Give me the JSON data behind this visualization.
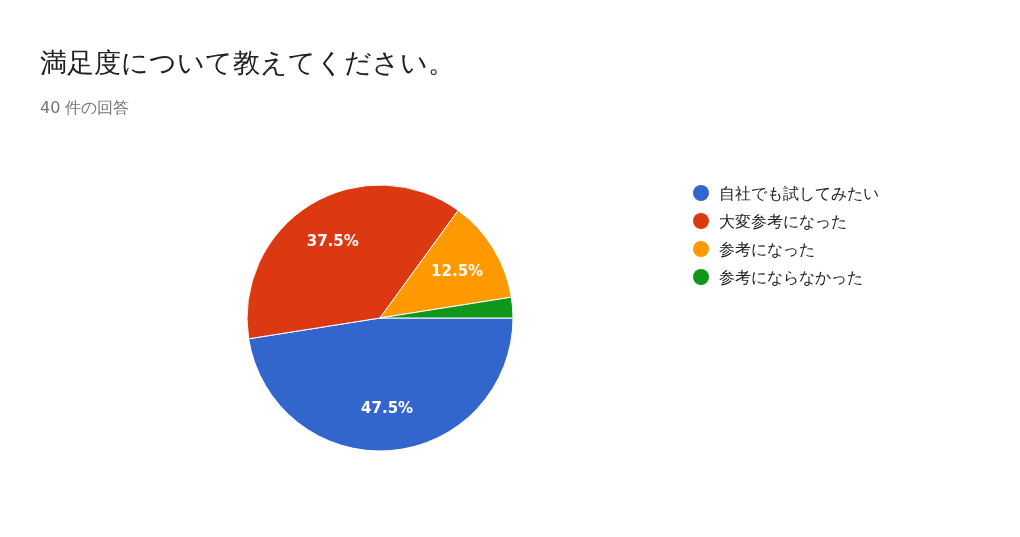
{
  "chart_data": {
    "type": "pie",
    "title": "満足度について教えてください。",
    "subtitle": "40 件の回答",
    "categories": [
      "自社でも試してみたい",
      "大変参考になった",
      "参考になった",
      "参考にならなかった"
    ],
    "values": [
      47.5,
      37.5,
      12.5,
      2.5
    ],
    "colors": [
      "#3366cc",
      "#dc3912",
      "#ff9900",
      "#109618"
    ],
    "value_labels": [
      "47.5%",
      "37.5%",
      "12.5%",
      null
    ],
    "legend": "right"
  }
}
